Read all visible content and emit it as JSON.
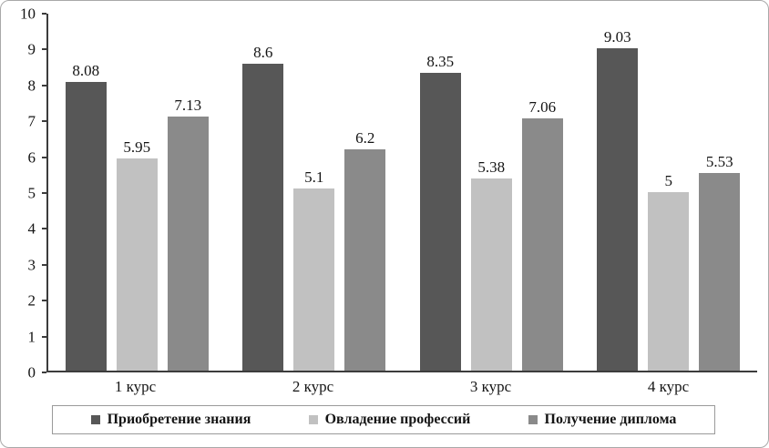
{
  "chart_data": {
    "type": "bar",
    "title": "",
    "xlabel": "",
    "ylabel": "",
    "categories": [
      "1 курс",
      "2 курс",
      "3 курс",
      "4 курс"
    ],
    "series": [
      {
        "name": "Приобретение знания",
        "color": "#575757",
        "values": [
          8.08,
          8.6,
          8.35,
          9.03
        ]
      },
      {
        "name": "Овладение профессий",
        "color": "#c1c1c1",
        "values": [
          5.95,
          5.1,
          5.38,
          5
        ]
      },
      {
        "name": "Получение диплома",
        "color": "#8a8a8a",
        "values": [
          7.13,
          6.2,
          7.06,
          5.53
        ]
      }
    ],
    "ylim": [
      0,
      10
    ],
    "ytick_step": 1,
    "grid": false,
    "legend_position": "bottom",
    "axis_color": "#3c3c3c"
  }
}
